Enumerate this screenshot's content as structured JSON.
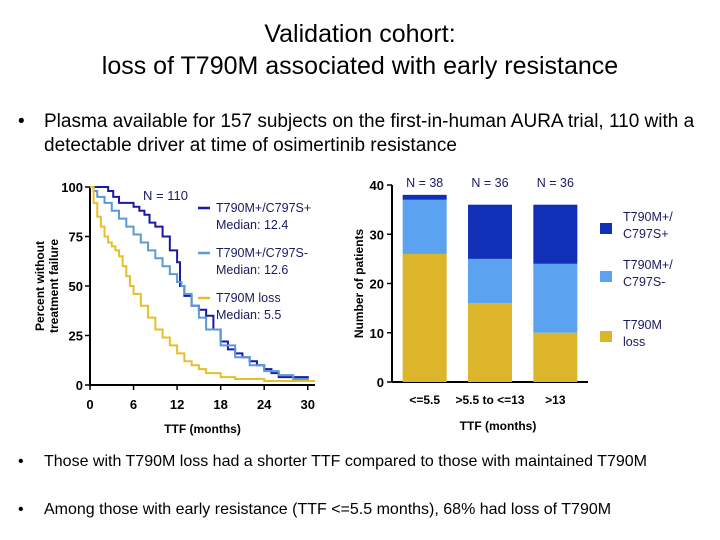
{
  "slide": {
    "title_line1": "Validation cohort:",
    "title_line2": "loss of T790M associated with early resistance",
    "bullet_symbol": "•",
    "bullets": [
      "Plasma available for 157 subjects on the first-in-human AURA trial, 110 with a detectable driver at time of osimertinib resistance",
      "Those with T790M loss had a shorter TTF compared to those with maintained T790M",
      "Among those with early resistance (TTF <=5.5 months), 68% had loss of T790M"
    ]
  },
  "chart_data": [
    {
      "type": "line",
      "subtype": "kaplan-meier",
      "ylabel": "Percent without treatment failure",
      "xlabel": "TTF (months)",
      "xlim": [
        0,
        31
      ],
      "ylim": [
        0,
        100
      ],
      "xticks": [
        0,
        6,
        12,
        18,
        24,
        30
      ],
      "yticks": [
        0,
        25,
        50,
        75,
        100
      ],
      "annotation": "N = 110",
      "series": [
        {
          "name": "T790M+/C797S+",
          "median_label": "Median: 12.4",
          "color": "#1a1aa8",
          "x": [
            0,
            1.5,
            2.5,
            3.2,
            4,
            5,
            6,
            6.8,
            7.5,
            8.2,
            9,
            10,
            11,
            12,
            12.4,
            13,
            14,
            15,
            16,
            17,
            18,
            19,
            20,
            21,
            22,
            23,
            24,
            25,
            26,
            28,
            30,
            31
          ],
          "y": [
            100,
            100,
            98,
            95,
            92,
            92,
            90,
            88,
            86,
            82,
            80,
            75,
            68,
            62,
            50,
            45,
            40,
            38,
            35,
            28,
            22,
            18,
            16,
            14,
            12,
            10,
            8,
            6,
            4,
            4,
            2,
            2
          ]
        },
        {
          "name": "T790M+/C797S-",
          "median_label": "Median: 12.6",
          "color": "#5b9bd5",
          "x": [
            0,
            0.5,
            1,
            2,
            3,
            4,
            5,
            6,
            7,
            8,
            9,
            10,
            11,
            12,
            12.6,
            13,
            14,
            15,
            16,
            18,
            20,
            22,
            24,
            26,
            28,
            30,
            31
          ],
          "y": [
            100,
            98,
            95,
            92,
            88,
            84,
            80,
            76,
            72,
            68,
            64,
            60,
            56,
            52,
            50,
            46,
            40,
            34,
            28,
            20,
            14,
            10,
            7,
            5,
            3,
            2,
            2
          ]
        },
        {
          "name": "T790M loss",
          "median_label": "Median: 5.5",
          "color": "#e6c02a",
          "x": [
            0,
            0.5,
            1,
            1.5,
            2,
            2.5,
            3,
            3.5,
            4,
            4.5,
            5,
            5.5,
            6,
            7,
            8,
            9,
            10,
            11,
            12,
            13,
            14,
            15,
            16,
            18,
            20,
            24,
            28,
            31
          ],
          "y": [
            100,
            92,
            85,
            80,
            75,
            72,
            70,
            68,
            65,
            60,
            55,
            50,
            46,
            40,
            34,
            28,
            24,
            20,
            16,
            12,
            10,
            8,
            6,
            4,
            3,
            2,
            2,
            2
          ]
        }
      ]
    },
    {
      "type": "bar",
      "stacked": true,
      "ylabel": "Number of patients",
      "xlabel": "TTF (months)",
      "ylim": [
        0,
        40
      ],
      "yticks": [
        0,
        10,
        20,
        30,
        40
      ],
      "categories": [
        "<=5.5",
        ">5.5 to <=13",
        ">13"
      ],
      "totals_labels": [
        "N = 38",
        "N = 36",
        "N = 36"
      ],
      "series": [
        {
          "name": "T790M loss",
          "legend_line1": "T790M",
          "legend_line2": "loss",
          "color": "#dcb52a",
          "values": [
            26,
            16,
            10
          ]
        },
        {
          "name": "T790M+/C797S-",
          "legend_line1": "T790M+/",
          "legend_line2": "C797S-",
          "color": "#5ba3f0",
          "values": [
            11,
            9,
            14
          ]
        },
        {
          "name": "T790M+/C797S+",
          "legend_line1": "T790M+/",
          "legend_line2": "C797S+",
          "color": "#1030b8",
          "values": [
            1,
            11,
            12
          ]
        }
      ]
    }
  ]
}
